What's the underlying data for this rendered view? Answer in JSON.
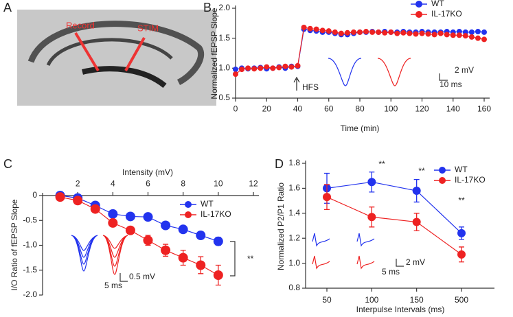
{
  "image_panel": {
    "panel_label": "A",
    "annotations": [
      "Record",
      "STIM"
    ]
  },
  "chart_data": [
    {
      "type": "line",
      "panel_label": "B",
      "x_label": "Time (min)",
      "y_label": "Normalized fEPSP Slope",
      "x": [
        0,
        4,
        8,
        12,
        16,
        20,
        24,
        28,
        32,
        36,
        40,
        44,
        48,
        52,
        56,
        60,
        64,
        68,
        72,
        76,
        80,
        84,
        88,
        92,
        96,
        100,
        104,
        108,
        112,
        116,
        120,
        124,
        128,
        132,
        136,
        140,
        144,
        148,
        152,
        156,
        160
      ],
      "series": [
        {
          "name": "WT",
          "color": "#2233ee",
          "values": [
            0.98,
            1.0,
            0.99,
            1.0,
            1.01,
            0.99,
            1.0,
            1.02,
            1.0,
            1.03,
            1.03,
            1.65,
            1.63,
            1.62,
            1.6,
            1.6,
            1.58,
            1.56,
            1.56,
            1.58,
            1.6,
            1.6,
            1.61,
            1.6,
            1.61,
            1.6,
            1.6,
            1.61,
            1.6,
            1.6,
            1.61,
            1.6,
            1.6,
            1.6,
            1.61,
            1.6,
            1.61,
            1.6,
            1.6,
            1.61,
            1.6
          ]
        },
        {
          "name": "IL-17KO",
          "color": "#ee2222",
          "values": [
            0.9,
            0.98,
            1.0,
            0.99,
            1.0,
            1.02,
            1.0,
            1.01,
            1.03,
            1.02,
            1.04,
            1.68,
            1.66,
            1.65,
            1.63,
            1.62,
            1.6,
            1.58,
            1.59,
            1.6,
            1.6,
            1.61,
            1.6,
            1.6,
            1.59,
            1.6,
            1.58,
            1.59,
            1.58,
            1.57,
            1.58,
            1.57,
            1.56,
            1.58,
            1.56,
            1.55,
            1.55,
            1.54,
            1.52,
            1.5,
            1.48
          ]
        }
      ],
      "xlim": [
        0,
        160
      ],
      "xticks": [
        0,
        20,
        40,
        60,
        80,
        100,
        120,
        140,
        160
      ],
      "ylim": [
        0.5,
        2.0
      ],
      "yticks": [
        0.5,
        {
          "value": 1.0,
          "label": "1.0"
        },
        1.5,
        {
          "value": 2.0,
          "label": "2.0"
        }
      ],
      "legend": "upper right",
      "annotations": [
        "HFS",
        "2 mV",
        "10 ms"
      ]
    },
    {
      "type": "line",
      "panel_label": "C",
      "x_label": "Intensity  (mV)",
      "y_label": "I/O Ratio of fEPSP Slope",
      "x": [
        1,
        2,
        3,
        4,
        5,
        6,
        7,
        8,
        9,
        10
      ],
      "series": [
        {
          "name": "WT",
          "color": "#2233ee",
          "values": [
            0,
            -0.05,
            -0.2,
            -0.37,
            -0.42,
            -0.43,
            -0.6,
            -0.68,
            -0.8,
            -0.92
          ],
          "errors": [
            0.04,
            0.04,
            0.05,
            0.06,
            0.06,
            0.07,
            0.06,
            0.06,
            0.07,
            0.08
          ]
        },
        {
          "name": "IL-17KO",
          "color": "#ee2222",
          "values": [
            -0.03,
            -0.1,
            -0.27,
            -0.55,
            -0.7,
            -0.9,
            -1.1,
            -1.25,
            -1.4,
            -1.6
          ],
          "errors": [
            0.05,
            0.05,
            0.06,
            0.07,
            0.07,
            0.1,
            0.12,
            0.15,
            0.17,
            0.2
          ]
        }
      ],
      "xlim": [
        0,
        12
      ],
      "xticks": [
        2,
        4,
        6,
        8,
        10,
        12
      ],
      "ylim": [
        -2.0,
        0
      ],
      "yticks": [
        0,
        -0.5,
        {
          "value": -1.0,
          "label": "-1.0"
        },
        -1.5,
        {
          "value": -2.0,
          "label": "-2.0"
        }
      ],
      "legend": "center right",
      "annotations": [
        "0.5 mV",
        "5 ms",
        "**"
      ]
    },
    {
      "type": "line",
      "panel_label": "D",
      "x_label": "Interpulse  Intervals  (ms)",
      "y_label": "Normalized P2/P1 Ratio",
      "categories": [
        "50",
        "100",
        "150",
        "500"
      ],
      "series": [
        {
          "name": "WT",
          "color": "#2233ee",
          "values": [
            1.6,
            1.65,
            1.58,
            1.24
          ],
          "errors": [
            0.12,
            0.08,
            0.09,
            0.05
          ]
        },
        {
          "name": "IL-17KO",
          "color": "#ee2222",
          "values": [
            1.53,
            1.37,
            1.33,
            1.07
          ],
          "errors": [
            0.1,
            0.08,
            0.07,
            0.06
          ]
        }
      ],
      "ylim": [
        0.8,
        1.8
      ],
      "yticks": [
        0.8,
        {
          "value": 1.0,
          "label": "1.0"
        },
        1.2,
        1.4,
        1.6,
        1.8
      ],
      "legend": "upper right",
      "annotations": [
        "**",
        "**",
        "**",
        "2 mV",
        "5 ms"
      ]
    }
  ]
}
